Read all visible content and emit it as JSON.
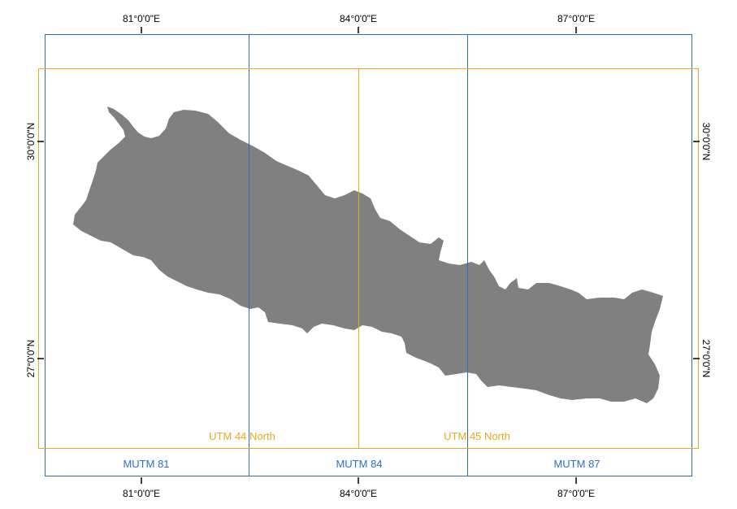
{
  "map": {
    "graticule_labels": {
      "top": [
        "81°0'0\"E",
        "84°0'0\"E",
        "87°0'0\"E"
      ],
      "bottom": [
        "81°0'0\"E",
        "84°0'0\"E",
        "87°0'0\"E"
      ],
      "left": [
        "30°0'0\"N",
        "27°0'0\"N"
      ],
      "right": [
        "30°0'0\"N",
        "27°0'0\"N"
      ]
    },
    "utm_zones": {
      "color": "#e8a820",
      "labels": [
        "UTM 44 North",
        "UTM 45 North"
      ]
    },
    "mutm_zones": {
      "color": "#2a6fc0",
      "labels": [
        "MUTM 81",
        "MUTM 84",
        "MUTM 87"
      ]
    },
    "country_fill": "#808080"
  }
}
